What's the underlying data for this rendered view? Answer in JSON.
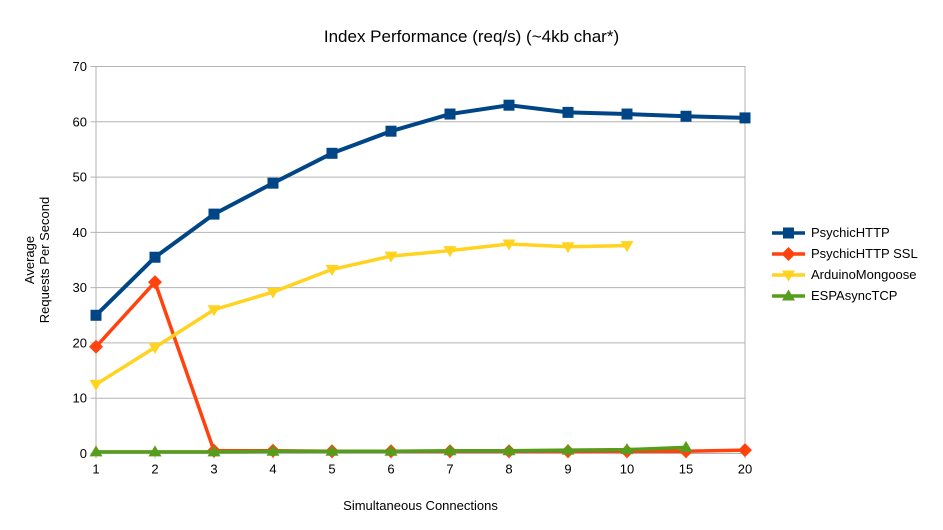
{
  "chart_data": {
    "type": "line",
    "title": "Index Performance (req/s) (~4kb char*)",
    "xlabel": "Simultaneous Connections",
    "ylabel_lines": [
      "Average",
      "Requests Per Second"
    ],
    "categories": [
      "1",
      "2",
      "3",
      "4",
      "5",
      "6",
      "7",
      "8",
      "9",
      "10",
      "15",
      "20"
    ],
    "y_ticks": [
      0,
      10,
      20,
      30,
      40,
      50,
      60,
      70
    ],
    "ylim": [
      0,
      70
    ],
    "grid": true,
    "legend_position": "right",
    "axis_color": "#b3b3b3",
    "text_color": "#000000",
    "background_color": "#ffffff",
    "series": [
      {
        "name": "PsychicHTTP",
        "color": "#004586",
        "marker": "square",
        "values": [
          25.0,
          35.5,
          43.3,
          48.9,
          54.3,
          58.3,
          61.4,
          63.0,
          61.7,
          61.4,
          61.0,
          60.7
        ]
      },
      {
        "name": "PsychicHTTP SSL",
        "color": "#FF420E",
        "marker": "diamond",
        "values": [
          19.3,
          31.0,
          0.5,
          0.5,
          0.4,
          0.4,
          0.4,
          0.4,
          0.4,
          0.4,
          0.4,
          0.6
        ]
      },
      {
        "name": "ArduinoMongoose",
        "color": "#FFD320",
        "marker": "triangle-down",
        "values": [
          12.5,
          19.2,
          26.0,
          29.2,
          33.3,
          35.7,
          36.7,
          37.9,
          37.4,
          37.6,
          null,
          null
        ]
      },
      {
        "name": "ESPAsyncTCP",
        "color": "#579D1C",
        "marker": "triangle-up",
        "values": [
          0.3,
          0.3,
          0.3,
          0.4,
          0.4,
          0.4,
          0.5,
          0.5,
          0.6,
          0.7,
          1.1,
          null
        ]
      }
    ]
  }
}
